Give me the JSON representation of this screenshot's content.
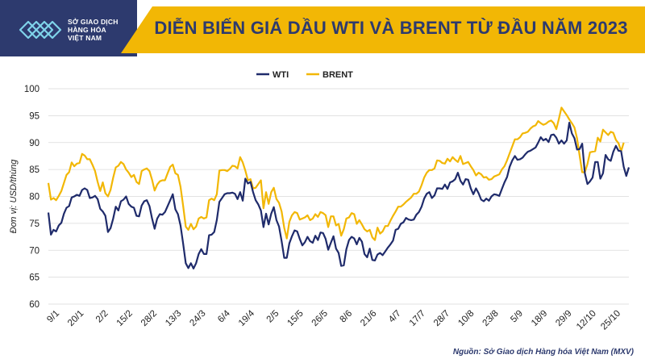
{
  "header": {
    "title": "DIỄN BIẾN GIÁ DẦU WTI VÀ BRENT TỪ ĐẦU NĂM 2023",
    "logo_lines": [
      "SỞ GIAO DỊCH",
      "HÀNG HÓA",
      "VIỆT NAM"
    ],
    "logo_icon": "mxv-logo"
  },
  "footer": {
    "source": "Nguồn: Sở Giao dịch Hàng hóa Việt Nam (MXV)"
  },
  "colors": {
    "navy": "#2d3a6e",
    "gold": "#f2b705",
    "wti": "#1f2b6b",
    "brent": "#f2b705"
  },
  "chart_data": {
    "type": "line",
    "title": "DIỄN BIẾN GIÁ DẦU WTI VÀ BRENT TỪ ĐẦU NĂM 2023",
    "ylabel": "Đơn vị: USD/thùng",
    "xlabel": "",
    "ylim": [
      60,
      100
    ],
    "yticks": [
      60,
      65,
      70,
      75,
      80,
      85,
      90,
      95,
      100
    ],
    "grid": true,
    "legend": "top-center",
    "x_tick_labels": [
      "9/1",
      "20/1",
      "2/2",
      "15/2",
      "28/2",
      "13/3",
      "24/3",
      "6/4",
      "19/4",
      "2/5",
      "15/5",
      "26/5",
      "8/6",
      "21/6",
      "4/7",
      "17/7",
      "28/7",
      "10/8",
      "23/8",
      "5/9",
      "18/9",
      "29/9",
      "12/10",
      "25/10"
    ],
    "series": [
      {
        "name": "WTI",
        "values": [
          77,
          72.9,
          73.8,
          73.5,
          74.6,
          75.1,
          76.8,
          77.9,
          78.2,
          79.8,
          80,
          80.3,
          80.1,
          81.2,
          81.5,
          81.2,
          79.7,
          79.8,
          80.1,
          79.5,
          77.7,
          77.2,
          76.4,
          73.4,
          74.1,
          75.9,
          78.1,
          77.4,
          79.1,
          79.4,
          80,
          78.6,
          78.1,
          77.9,
          76.4,
          76.3,
          78.3,
          79.1,
          79.3,
          78.2,
          75.9,
          74,
          75.9,
          76.7,
          76.6,
          77.1,
          78.2,
          79.3,
          80.4,
          77.6,
          76.7,
          74.6,
          71.3,
          67.6,
          66.7,
          67.6,
          66.6,
          67.6,
          69.3,
          70.2,
          69.3,
          69.3,
          72.8,
          72.9,
          73.4,
          75.6,
          79,
          79.7,
          80.4,
          80.6,
          80.6,
          80.7,
          80.5,
          79.5,
          80.8,
          79.2,
          83.3,
          82.4,
          82.7,
          80.8,
          79.3,
          78.5,
          77.4,
          74.3,
          76.8,
          74.8,
          76.8,
          78,
          75.6,
          74.4,
          71.7,
          68.6,
          68.6,
          71.3,
          72.6,
          73.7,
          73.5,
          72.1,
          70.9,
          71.5,
          72.5,
          71.7,
          71.4,
          72.7,
          71.9,
          73.3,
          73.2,
          72.1,
          70.1,
          71.4,
          72.6,
          70.3,
          69.5,
          67.1,
          67.2,
          70.2,
          71.9,
          72.5,
          72.2,
          71.1,
          72.3,
          71.6,
          69.3,
          68.7,
          70.3,
          68.2,
          68.1,
          69.2,
          69.5,
          69.1,
          69.8,
          70.5,
          71.1,
          71.8,
          73.8,
          74,
          74.9,
          75.2,
          76,
          75.7,
          75.6,
          75.7,
          76.6,
          77.1,
          78.1,
          79.6,
          80.5,
          80.8,
          79.7,
          80.2,
          81.5,
          81.5,
          81.4,
          82.2,
          81.4,
          82.6,
          82.8,
          83.2,
          84.4,
          82.9,
          82.2,
          83.2,
          83.1,
          81.5,
          80.4,
          81.5,
          80.6,
          79.4,
          79.1,
          79.6,
          79.2,
          80,
          80.4,
          80.3,
          80.1,
          81.4,
          82.6,
          83.6,
          85.5,
          86.7,
          87.5,
          86.8,
          86.9,
          87.2,
          87.8,
          88.3,
          88.5,
          88.8,
          89.1,
          90,
          91,
          90.4,
          90.7,
          90.1,
          91.4,
          91.5,
          90.9,
          89.8,
          90.4,
          89.8,
          90.4,
          93.7,
          91.7,
          90.8,
          88.7,
          88.8,
          89.8,
          84.3,
          82.3,
          82.8,
          83.5,
          86.4,
          86.4,
          83.3,
          84.3,
          87.7,
          86.9,
          86.6,
          88.3,
          89.4,
          88.5,
          88.4,
          85.5,
          83.8,
          85.4
        ]
      },
      {
        "name": "BRENT",
        "values": [
          82.5,
          79.4,
          79.7,
          79.3,
          80.1,
          81,
          82.5,
          84,
          84.5,
          86.3,
          85.6,
          86.1,
          86.2,
          87.9,
          87.6,
          86.9,
          86.9,
          85.9,
          84.7,
          82.7,
          81,
          82.6,
          80.6,
          80,
          81.2,
          83.5,
          85.4,
          85.7,
          86.4,
          86,
          85,
          84.4,
          83.6,
          84,
          82.7,
          82.3,
          84.7,
          85,
          85.2,
          84.7,
          83.1,
          81.1,
          82.2,
          82.8,
          83,
          83,
          84.3,
          85.5,
          85.9,
          84.3,
          84,
          81.8,
          78.3,
          74.4,
          73.8,
          74.9,
          73.9,
          74.4,
          75.9,
          76.2,
          75.9,
          76.1,
          79.3,
          79.6,
          79.3,
          80.4,
          84.8,
          84.9,
          84.9,
          84.7,
          85.1,
          85.7,
          85.6,
          85.2,
          87.3,
          86.3,
          84.8,
          83,
          83.2,
          81.5,
          81.6,
          82.3,
          83,
          77.8,
          80.8,
          78.6,
          80.8,
          81.6,
          79.5,
          78.8,
          77.2,
          74.2,
          72.2,
          75.3,
          76.5,
          77.1,
          76.9,
          75.7,
          75.9,
          76.1,
          76.5,
          75.6,
          75.9,
          76.7,
          76.2,
          77.1,
          76.9,
          76.5,
          74.3,
          76.3,
          76.3,
          74.6,
          74.9,
          72.7,
          73.9,
          75.9,
          76.1,
          76.9,
          76.7,
          74.9,
          75.6,
          74.8,
          73.9,
          73.5,
          73.8,
          72.4,
          71.9,
          74.2,
          73.1,
          73.5,
          74.5,
          74.5,
          75.5,
          76.4,
          77.2,
          78.1,
          78.1,
          78.5,
          79,
          79.4,
          79.8,
          80.5,
          80.5,
          80.9,
          82.1,
          83.5,
          84.4,
          84.9,
          84.9,
          85.2,
          86.7,
          86.6,
          86.2,
          86.1,
          87,
          86.5,
          87.3,
          86.8,
          86.4,
          87.5,
          86,
          86.2,
          86.4,
          85.6,
          84.9,
          83.9,
          84.4,
          84.1,
          83.5,
          83.6,
          83.1,
          83.2,
          83.7,
          83.9,
          84.1,
          85,
          85.6,
          86.7,
          88,
          89.3,
          90.6,
          90.6,
          91,
          91.7,
          91.8,
          92,
          92.6,
          93,
          93.2,
          94,
          93.6,
          93.3,
          93.5,
          93.9,
          94.1,
          93.6,
          92.5,
          94.4,
          96.5,
          95.8,
          95.1,
          94.3,
          93.6,
          92.8,
          90.8,
          87.6,
          84.5,
          84.5,
          86,
          88.2,
          88.3,
          88.4,
          90.9,
          90.2,
          92.4,
          91.9,
          91.4,
          92,
          91.8,
          90.5,
          89.9,
          88.4,
          90
        ]
      }
    ]
  }
}
